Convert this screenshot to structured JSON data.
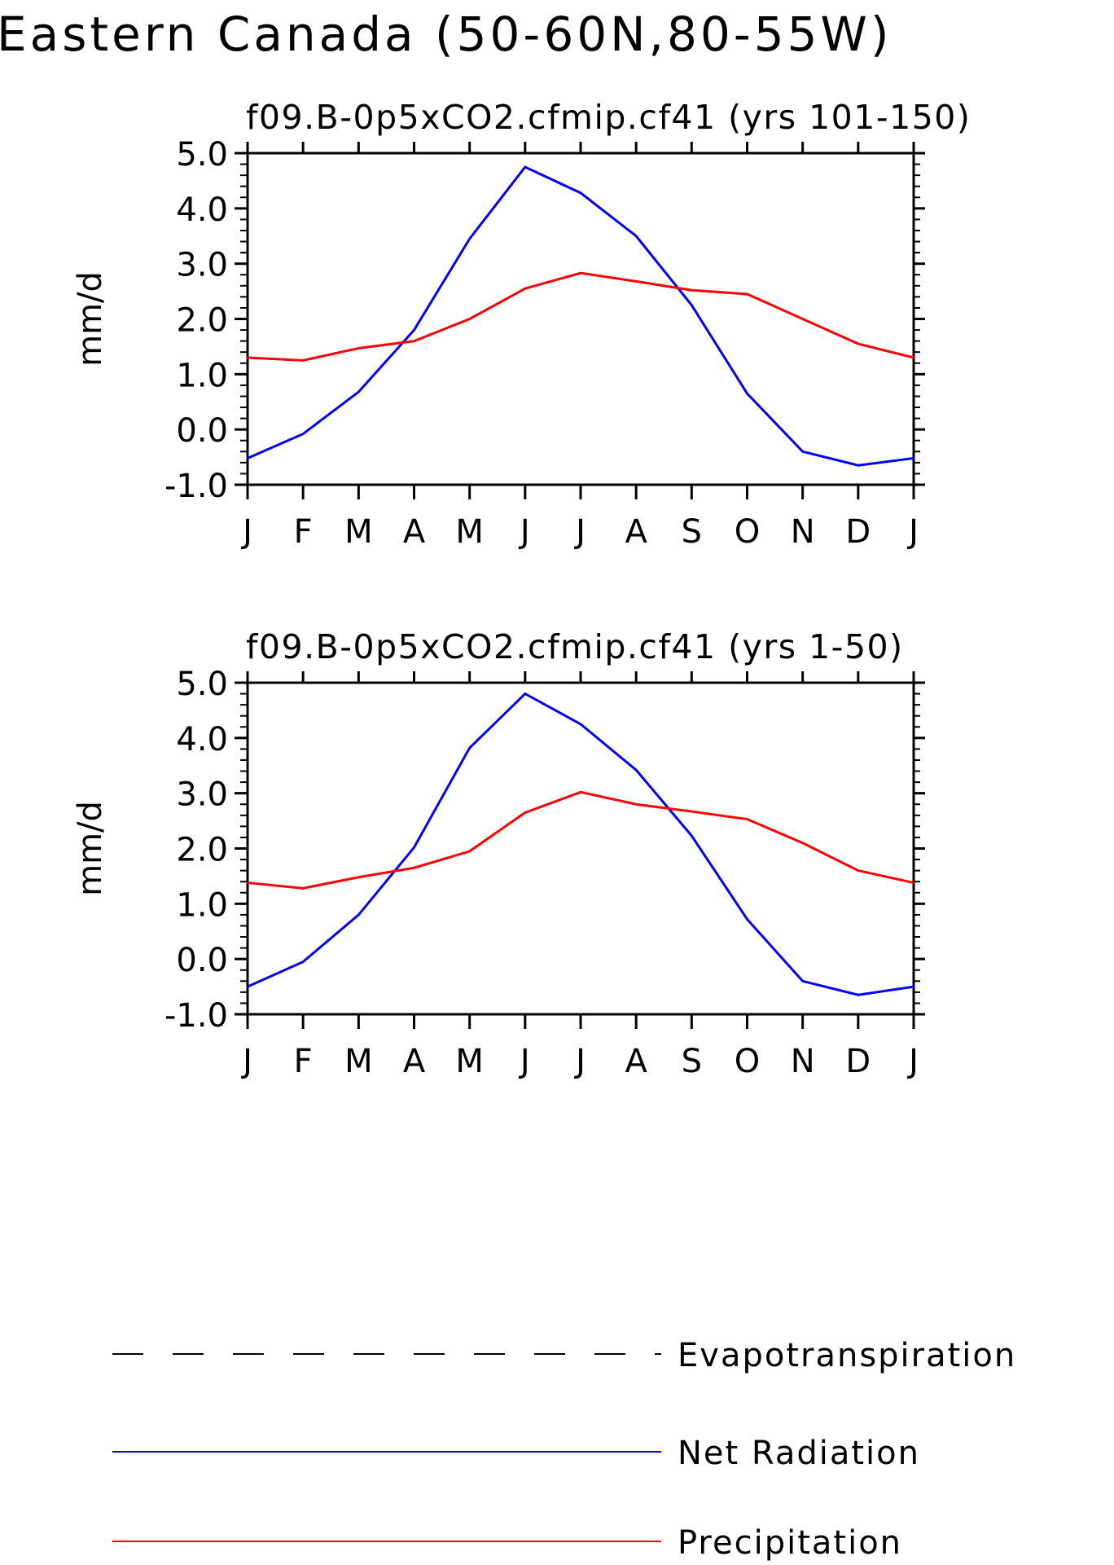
{
  "title": "Eastern Canada (50-60N,80-55W)",
  "colors": {
    "net_radiation": "#0000ff",
    "precipitation": "#ff0000",
    "evapotranspiration": "#000000",
    "axis": "#000000"
  },
  "chart_data": [
    {
      "type": "line",
      "title": "f09.B-0p5xCO2.cfmip.cf41 (yrs 101-150)",
      "ylabel": "mm/d",
      "xlabel": "",
      "categories": [
        "J",
        "F",
        "M",
        "A",
        "M",
        "J",
        "J",
        "A",
        "S",
        "O",
        "N",
        "D",
        "J"
      ],
      "ylim": [
        -1.0,
        5.0
      ],
      "yticks": [
        "5.0",
        "4.0",
        "3.0",
        "2.0",
        "1.0",
        "0.0",
        "-1.0"
      ],
      "grid": false,
      "series": [
        {
          "name": "Net Radiation",
          "color": "#0000ff",
          "values": [
            -0.52,
            -0.08,
            0.68,
            1.8,
            3.45,
            4.75,
            4.28,
            3.5,
            2.25,
            0.65,
            -0.4,
            -0.65,
            -0.52
          ]
        },
        {
          "name": "Precipitation",
          "color": "#ff0000",
          "values": [
            1.3,
            1.25,
            1.47,
            1.6,
            2.0,
            2.55,
            2.83,
            2.68,
            2.52,
            2.45,
            2.0,
            1.55,
            1.3
          ]
        }
      ]
    },
    {
      "type": "line",
      "title": "f09.B-0p5xCO2.cfmip.cf41 (yrs 1-50)",
      "ylabel": "mm/d",
      "xlabel": "",
      "categories": [
        "J",
        "F",
        "M",
        "A",
        "M",
        "J",
        "J",
        "A",
        "S",
        "O",
        "N",
        "D",
        "J"
      ],
      "ylim": [
        -1.0,
        5.0
      ],
      "yticks": [
        "5.0",
        "4.0",
        "3.0",
        "2.0",
        "1.0",
        "0.0",
        "-1.0"
      ],
      "grid": false,
      "series": [
        {
          "name": "Net Radiation",
          "color": "#0000ff",
          "values": [
            -0.5,
            -0.05,
            0.8,
            2.02,
            3.82,
            4.8,
            4.25,
            3.42,
            2.23,
            0.72,
            -0.4,
            -0.65,
            -0.5
          ]
        },
        {
          "name": "Precipitation",
          "color": "#ff0000",
          "values": [
            1.38,
            1.28,
            1.48,
            1.65,
            1.95,
            2.65,
            3.02,
            2.8,
            2.67,
            2.53,
            2.1,
            1.6,
            1.38
          ]
        }
      ]
    }
  ],
  "legend": {
    "placement": "bottom",
    "entries": [
      {
        "label": "Evapotranspiration",
        "style": "dashed",
        "color": "#000000"
      },
      {
        "label": "Net Radiation",
        "style": "solid",
        "color": "#0000ff"
      },
      {
        "label": "Precipitation",
        "style": "solid",
        "color": "#ff0000"
      }
    ]
  }
}
